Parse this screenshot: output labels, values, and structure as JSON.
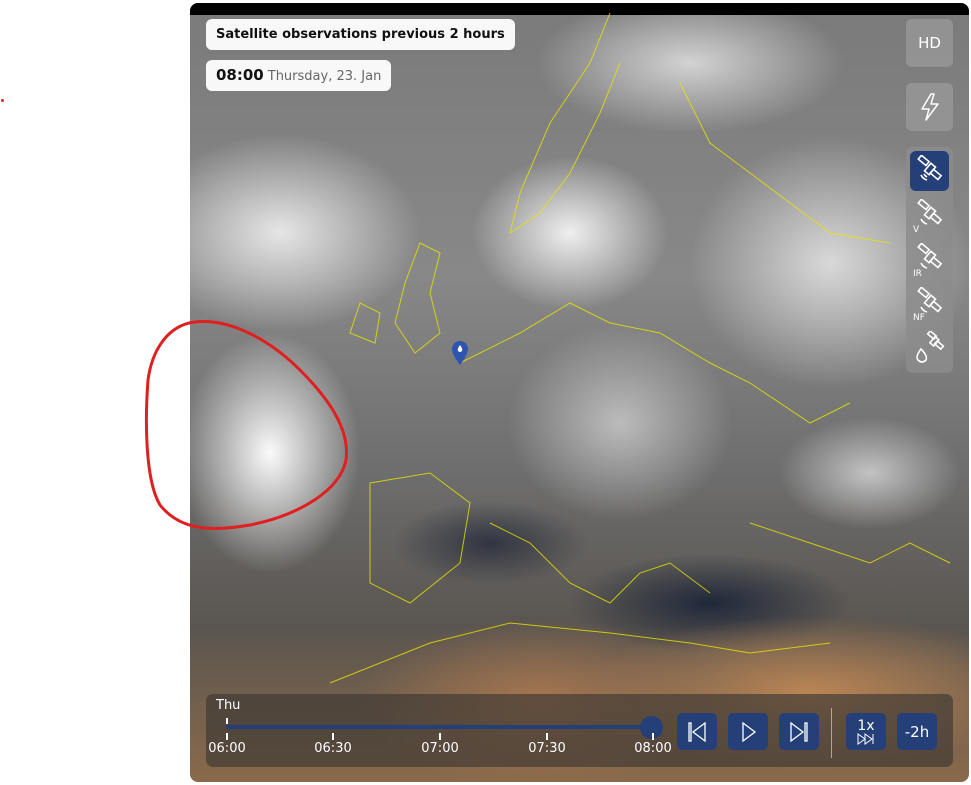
{
  "header": {
    "title": "Satellite observations previous 2 hours",
    "time": "08:00",
    "date": "Thursday, 23. Jan"
  },
  "side_controls": {
    "hd_label": "HD",
    "lightning_icon": "lightning-icon",
    "layers": [
      {
        "icon": "satellite-icon",
        "label": "",
        "active": true
      },
      {
        "icon": "satellite-icon",
        "label": "V",
        "active": false
      },
      {
        "icon": "satellite-icon",
        "label": "IR",
        "active": false
      },
      {
        "icon": "satellite-icon",
        "label": "NF",
        "active": false
      },
      {
        "icon": "satellite-drop-icon",
        "label": "",
        "active": false
      }
    ]
  },
  "timeline": {
    "day": "Thu",
    "ticks": [
      "06:00",
      "06:30",
      "07:00",
      "07:30",
      "08:00"
    ],
    "progress": 1.0,
    "speed_label": "1x",
    "range_label": "-2h"
  },
  "colors": {
    "accent": "#253f78",
    "annotation": "#e02020",
    "borders": "#e6e600"
  }
}
